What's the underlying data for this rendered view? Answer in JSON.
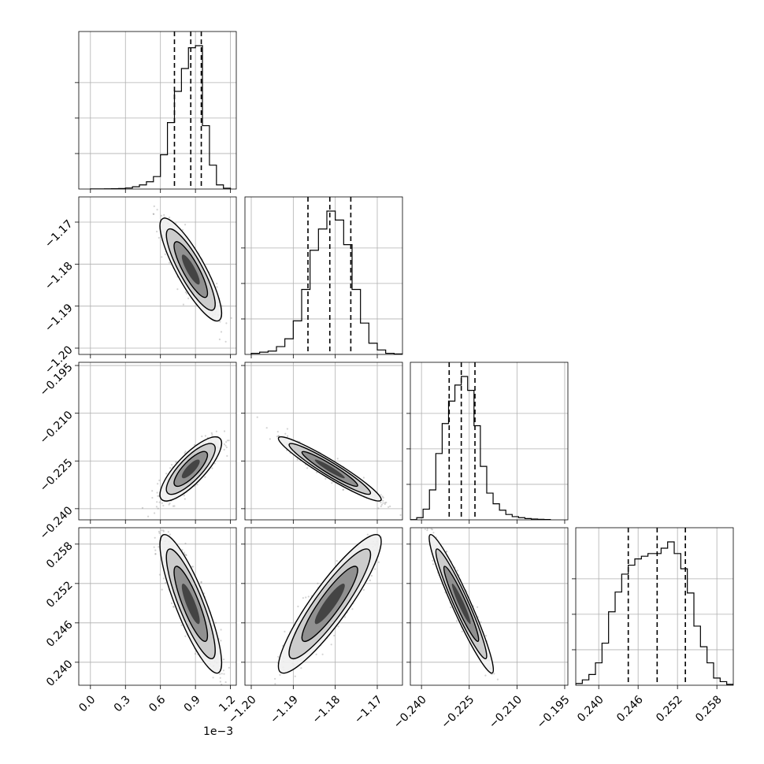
{
  "chart_data": {
    "type": "corner",
    "grid": true,
    "scatter_color": "#808080",
    "parameters": [
      {
        "range": [
          -0.1,
          1.25
        ],
        "ticks": [
          0.0,
          0.3,
          0.6,
          0.9,
          1.2
        ],
        "tick_labels": [
          "0.0",
          "0.3",
          "0.6",
          "0.9",
          "1.2"
        ],
        "offset_text": "1e−3",
        "quantiles": [
          0.72,
          0.86,
          0.95
        ],
        "hist": {
          "edges": [
            0.0,
            0.06,
            0.12,
            0.18,
            0.24,
            0.3,
            0.36,
            0.42,
            0.48,
            0.54,
            0.6,
            0.66,
            0.72,
            0.78,
            0.84,
            0.9,
            0.96,
            1.02,
            1.08,
            1.14,
            1.2
          ],
          "counts": [
            1,
            1,
            2,
            3,
            5,
            10,
            22,
            40,
            70,
            120,
            330,
            640,
            940,
            1160,
            1360,
            1380,
            610,
            230,
            40,
            8
          ]
        }
      },
      {
        "range": [
          -1.2015,
          -1.164
        ],
        "ticks": [
          -1.2,
          -1.19,
          -1.18,
          -1.17
        ],
        "tick_labels": [
          "−1.20",
          "−1.19",
          "−1.18",
          "−1.17"
        ],
        "quantiles": [
          -1.1865,
          -1.1813,
          -1.1763
        ],
        "hist": {
          "edges": [
            -1.2,
            -1.198,
            -1.196,
            -1.194,
            -1.192,
            -1.19,
            -1.188,
            -1.186,
            -1.184,
            -1.182,
            -1.18,
            -1.178,
            -1.176,
            -1.174,
            -1.172,
            -1.17,
            -1.168,
            -1.166,
            -1.164
          ],
          "counts": [
            10,
            20,
            30,
            70,
            140,
            300,
            580,
            930,
            1120,
            1280,
            1200,
            980,
            580,
            280,
            100,
            40,
            10,
            5
          ]
        }
      },
      {
        "range": [
          -0.2435,
          -0.194
        ],
        "ticks": [
          -0.24,
          -0.225,
          -0.21,
          -0.195
        ],
        "tick_labels": [
          "−0.240",
          "−0.225",
          "−0.210",
          "−0.195"
        ],
        "quantiles": [
          -0.2313,
          -0.2275,
          -0.2232
        ],
        "hist": {
          "edges": [
            -0.2435,
            -0.2415,
            -0.2395,
            -0.2375,
            -0.2355,
            -0.2335,
            -0.2315,
            -0.2295,
            -0.2275,
            -0.2255,
            -0.2235,
            -0.2215,
            -0.2195,
            -0.2175,
            -0.2155,
            -0.2135,
            -0.2115,
            -0.2095,
            -0.2075,
            -0.2055,
            -0.2035,
            -0.2015,
            -0.1995
          ],
          "counts": [
            2,
            20,
            100,
            280,
            620,
            900,
            1110,
            1260,
            1340,
            1210,
            880,
            500,
            250,
            150,
            90,
            50,
            30,
            20,
            12,
            8,
            5,
            3
          ]
        }
      },
      {
        "range": [
          0.2365,
          0.2605
        ],
        "ticks": [
          0.24,
          0.246,
          0.252,
          0.258
        ],
        "tick_labels": [
          "0.240",
          "0.246",
          "0.252",
          "0.258"
        ],
        "quantiles": [
          0.2445,
          0.2489,
          0.2532
        ],
        "hist": {
          "edges": [
            0.2365,
            0.2375,
            0.2385,
            0.2395,
            0.2405,
            0.2415,
            0.2425,
            0.2435,
            0.2445,
            0.2455,
            0.2465,
            0.2475,
            0.2485,
            0.2495,
            0.2505,
            0.2515,
            0.2525,
            0.2535,
            0.2545,
            0.2555,
            0.2565,
            0.2575,
            0.2585,
            0.2595,
            0.2605
          ],
          "counts": [
            20,
            60,
            120,
            250,
            470,
            820,
            1040,
            1240,
            1340,
            1410,
            1440,
            1470,
            1470,
            1530,
            1600,
            1470,
            1300,
            1030,
            660,
            430,
            250,
            80,
            40,
            10
          ]
        }
      }
    ],
    "pairs": [
      {
        "x": 0,
        "y": 1,
        "mean": [
          0.86,
          -1.1813
        ],
        "sd": [
          0.11,
          0.0051
        ],
        "rho": -0.85
      },
      {
        "x": 0,
        "y": 2,
        "mean": [
          0.86,
          -0.2275
        ],
        "sd": [
          0.11,
          0.0042
        ],
        "rho": 0.8
      },
      {
        "x": 1,
        "y": 2,
        "mean": [
          -1.1813,
          -0.2275
        ],
        "sd": [
          0.0051,
          0.0042
        ],
        "rho": -0.95
      },
      {
        "x": 0,
        "y": 3,
        "mean": [
          0.86,
          0.2489
        ],
        "sd": [
          0.11,
          0.0044
        ],
        "rho": -0.85
      },
      {
        "x": 1,
        "y": 3,
        "mean": [
          -1.1813,
          0.2489
        ],
        "sd": [
          0.0051,
          0.0044
        ],
        "rho": 0.9
      },
      {
        "x": 2,
        "y": 3,
        "mean": [
          -0.2275,
          0.2489
        ],
        "sd": [
          0.0042,
          0.0044
        ],
        "rho": -0.95
      }
    ]
  }
}
